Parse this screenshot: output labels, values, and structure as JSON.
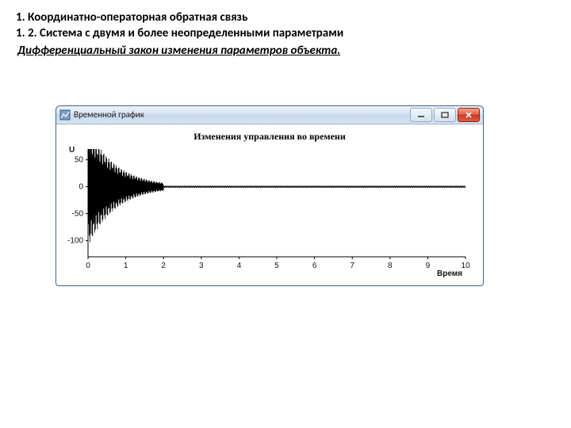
{
  "heading_line1": "1. Координатно-операторная обратная связь",
  "heading_line2": "1. 2. Система с двумя и более неопределенными параметрами",
  "subheading": "Дифференциальный закон изменения параметров объекта.",
  "window": {
    "title": "Временной график",
    "min_label": "_",
    "max_label": "□",
    "close_label": "×"
  },
  "chart": {
    "type": "line",
    "title": "Изменения управления во времени",
    "ylabel": "U",
    "xlabel": "Время",
    "xlim": [
      0,
      10
    ],
    "ylim": [
      -130,
      70
    ],
    "yticks": [
      50,
      0,
      -50,
      -100
    ],
    "xticks": [
      0,
      1,
      2,
      3,
      4,
      5,
      6,
      7,
      8,
      9,
      10
    ],
    "xtick_labels": [
      "0",
      "1",
      "2",
      "3",
      "4",
      "5",
      "6",
      "7",
      "8",
      "9",
      "10"
    ],
    "ytick_labels": [
      "50",
      "0",
      "-50",
      "-100"
    ],
    "initial_amp": 110,
    "decay": 1.35,
    "freq": 55,
    "settle_end": 2.0,
    "tail_band": 1.5,
    "background_color": "#ffffff",
    "line_color": "#000000",
    "axis_color": "#000000",
    "line_width": 0.8
  }
}
